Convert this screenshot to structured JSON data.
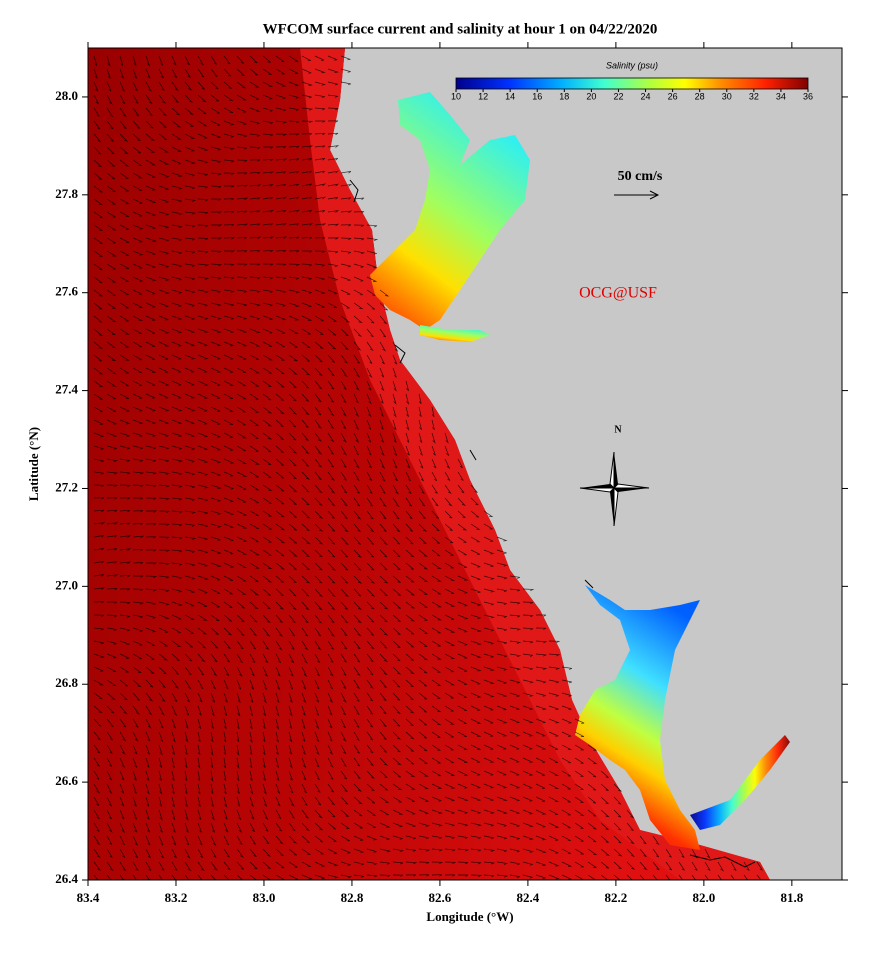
{
  "map": {
    "title": "WFCOM surface current and salinity at hour 1 on 04/22/2020",
    "xlabel": "Longitude (°W)",
    "ylabel": "Latitude (°N)",
    "xlim": [
      83.4,
      81.686
    ],
    "ylim": [
      26.4,
      28.1
    ],
    "xticks": [
      83.4,
      83.2,
      {
        "value": 83.0,
        "label": "83.0"
      },
      82.8,
      82.6,
      82.4,
      82.2,
      {
        "value": 82.0,
        "label": "82.0"
      },
      81.8
    ],
    "yticks": [
      26.4,
      26.6,
      26.8,
      {
        "value": 27.0,
        "label": "27.0"
      },
      27.2,
      27.4,
      27.6,
      27.8,
      {
        "value": 28.0,
        "label": "28.0"
      }
    ],
    "colorbar": {
      "label": "Salinity (psu)",
      "lim": [
        10,
        36
      ],
      "ticks": [
        10,
        12,
        14,
        16,
        18,
        20,
        22,
        24,
        26,
        28,
        30,
        32,
        34,
        36
      ]
    },
    "scale_label": "50 cm/s",
    "credit": "OCG@USF",
    "compass_label": "N"
  }
}
